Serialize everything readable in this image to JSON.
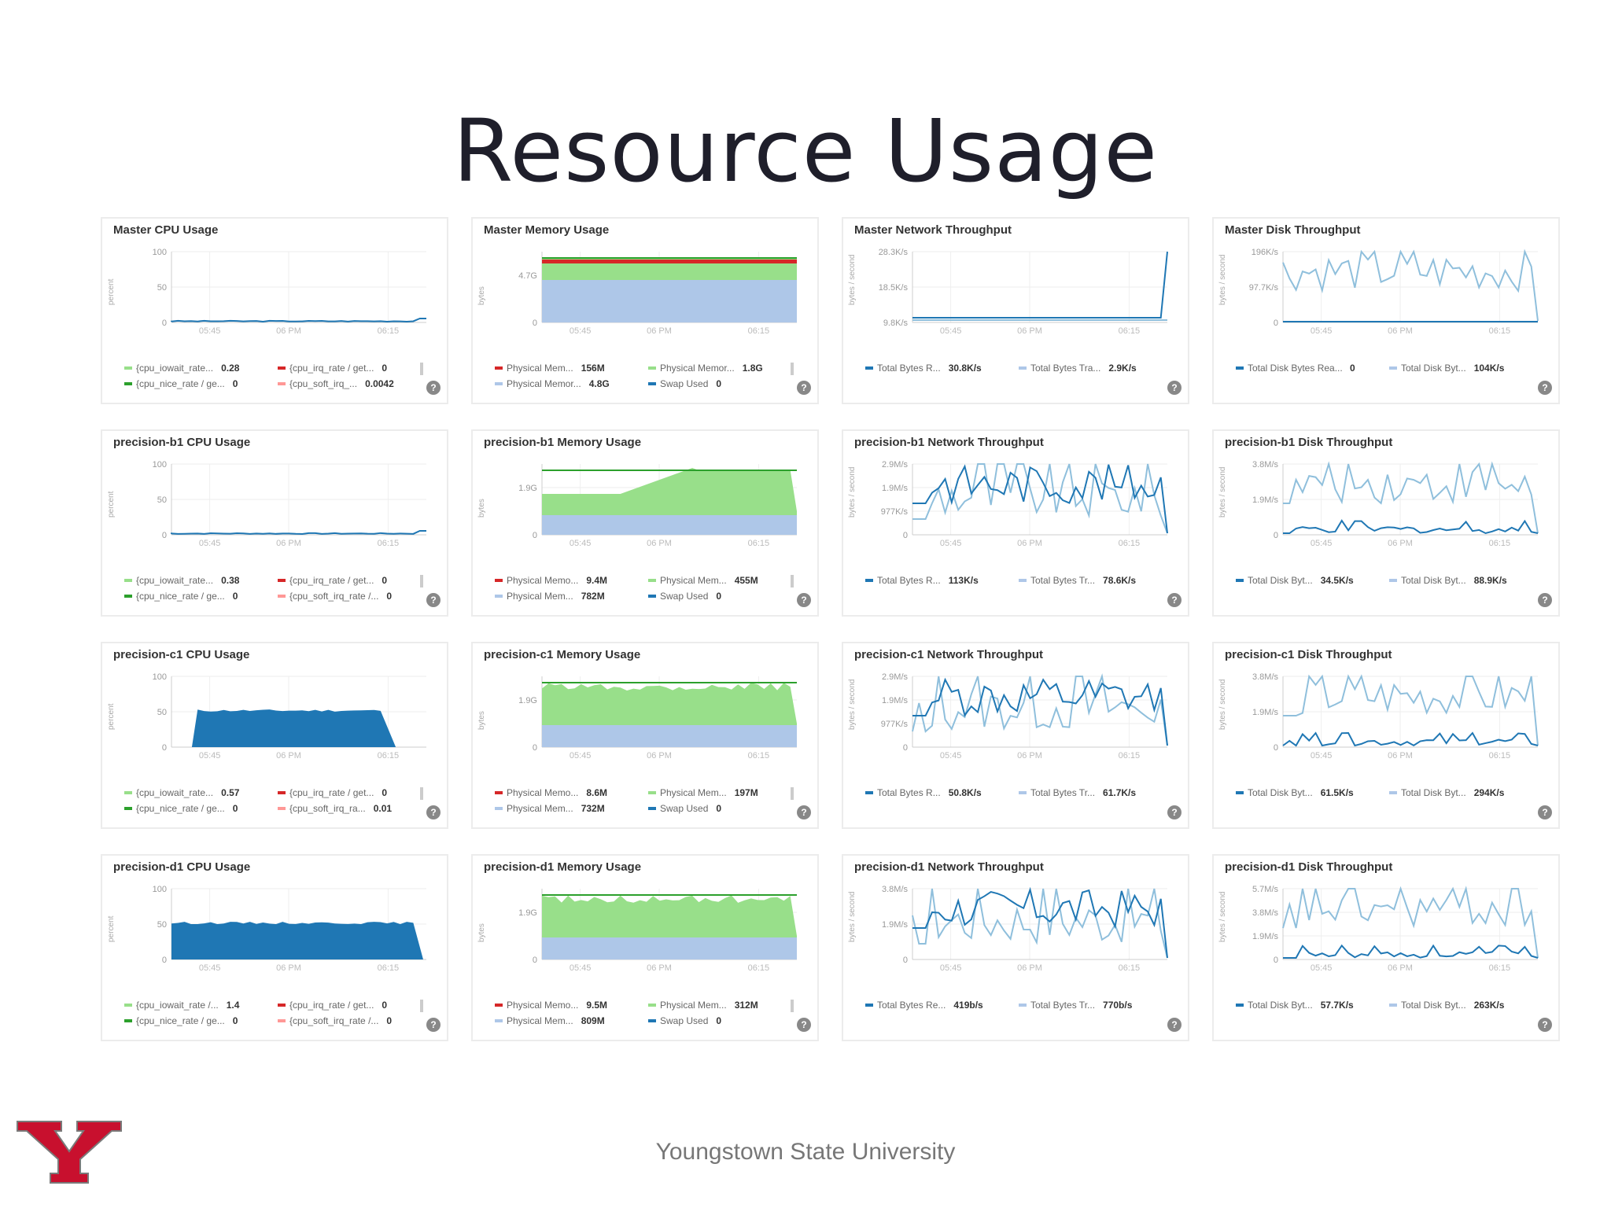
{
  "slide_title": "Resource Usage",
  "footer": "Youngstown State University",
  "logo_letter": "Y",
  "panels": [
    {
      "title": "Master CPU Usage",
      "kind": "cpu",
      "ylabel": "percent",
      "yticks": [
        "100",
        "50",
        "0"
      ],
      "xticks": [
        "05:45",
        "06 PM",
        "06:15"
      ],
      "legend": [
        {
          "name": "{cpu_iowait_rate...",
          "value": "0.28",
          "color": "#98df8a"
        },
        {
          "name": "{cpu_irq_rate / get...",
          "value": "0",
          "color": "#d62728"
        },
        {
          "name": "{cpu_nice_rate / ge...",
          "value": "0",
          "color": "#2ca02c"
        },
        {
          "name": "{cpu_soft_irq_...",
          "value": "0.0042",
          "color": "#ff9896"
        }
      ]
    },
    {
      "title": "Master Memory Usage",
      "kind": "mem",
      "ylabel": "bytes",
      "yticks": [
        "4.7G",
        "0"
      ],
      "xticks": [
        "05:45",
        "06 PM",
        "06:15"
      ],
      "legend": [
        {
          "name": "Physical Mem...",
          "value": "156M",
          "color": "#d62728"
        },
        {
          "name": "Physical Memor...",
          "value": "1.8G",
          "color": "#98df8a"
        },
        {
          "name": "Physical Memor...",
          "value": "4.8G",
          "color": "#aec7e8"
        },
        {
          "name": "Swap Used",
          "value": "0",
          "color": "#1f77b4"
        }
      ]
    },
    {
      "title": "Master Network Throughput",
      "kind": "net",
      "ylabel": "bytes / second",
      "yticks": [
        "28.3K/s",
        "18.5K/s",
        "9.8K/s"
      ],
      "xticks": [
        "05:45",
        "06 PM",
        "06:15"
      ],
      "legend": [
        {
          "name": "Total Bytes R...",
          "value": "30.8K/s",
          "color": "#1f77b4"
        },
        {
          "name": "Total Bytes Tra...",
          "value": "2.9K/s",
          "color": "#aec7e8"
        }
      ]
    },
    {
      "title": "Master Disk Throughput",
      "kind": "disk",
      "ylabel": "bytes / second",
      "yticks": [
        "196K/s",
        "97.7K/s",
        "0"
      ],
      "xticks": [
        "05:45",
        "06 PM",
        "06:15"
      ],
      "legend": [
        {
          "name": "Total Disk Bytes Rea...",
          "value": "0",
          "color": "#1f77b4"
        },
        {
          "name": "Total Disk Byt...",
          "value": "104K/s",
          "color": "#aec7e8"
        }
      ]
    },
    {
      "title": "precision-b1 CPU Usage",
      "kind": "cpu",
      "ylabel": "percent",
      "yticks": [
        "100",
        "50",
        "0"
      ],
      "xticks": [
        "05:45",
        "06 PM",
        "06:15"
      ],
      "legend": [
        {
          "name": "{cpu_iowait_rate...",
          "value": "0.38",
          "color": "#98df8a"
        },
        {
          "name": "{cpu_irq_rate / get...",
          "value": "0",
          "color": "#d62728"
        },
        {
          "name": "{cpu_nice_rate / ge...",
          "value": "0",
          "color": "#2ca02c"
        },
        {
          "name": "{cpu_soft_irq_rate /...",
          "value": "0",
          "color": "#ff9896"
        }
      ]
    },
    {
      "title": "precision-b1 Memory Usage",
      "kind": "mem",
      "ylabel": "bytes",
      "yticks": [
        "1.9G",
        "0"
      ],
      "xticks": [
        "05:45",
        "06 PM",
        "06:15"
      ],
      "legend": [
        {
          "name": "Physical Memo...",
          "value": "9.4M",
          "color": "#d62728"
        },
        {
          "name": "Physical Mem...",
          "value": "455M",
          "color": "#98df8a"
        },
        {
          "name": "Physical Mem...",
          "value": "782M",
          "color": "#aec7e8"
        },
        {
          "name": "Swap Used",
          "value": "0",
          "color": "#1f77b4"
        }
      ]
    },
    {
      "title": "precision-b1 Network Throughput",
      "kind": "net",
      "ylabel": "bytes / second",
      "yticks": [
        "2.9M/s",
        "1.9M/s",
        "977K/s",
        "0"
      ],
      "xticks": [
        "05:45",
        "06 PM",
        "06:15"
      ],
      "legend": [
        {
          "name": "Total Bytes R...",
          "value": "113K/s",
          "color": "#1f77b4"
        },
        {
          "name": "Total Bytes Tr...",
          "value": "78.6K/s",
          "color": "#aec7e8"
        }
      ]
    },
    {
      "title": "precision-b1 Disk Throughput",
      "kind": "disk",
      "ylabel": "bytes / second",
      "yticks": [
        "3.8M/s",
        "1.9M/s",
        "0"
      ],
      "xticks": [
        "05:45",
        "06 PM",
        "06:15"
      ],
      "legend": [
        {
          "name": "Total Disk Byt...",
          "value": "34.5K/s",
          "color": "#1f77b4"
        },
        {
          "name": "Total Disk Byt...",
          "value": "88.9K/s",
          "color": "#aec7e8"
        }
      ]
    },
    {
      "title": "precision-c1 CPU Usage",
      "kind": "cpu",
      "ylabel": "percent",
      "yticks": [
        "100",
        "50",
        "0"
      ],
      "xticks": [
        "05:45",
        "06 PM",
        "06:15"
      ],
      "legend": [
        {
          "name": "{cpu_iowait_rate...",
          "value": "0.57",
          "color": "#98df8a"
        },
        {
          "name": "{cpu_irq_rate / get...",
          "value": "0",
          "color": "#d62728"
        },
        {
          "name": "{cpu_nice_rate / ge...",
          "value": "0",
          "color": "#2ca02c"
        },
        {
          "name": "{cpu_soft_irq_ra...",
          "value": "0.01",
          "color": "#ff9896"
        }
      ]
    },
    {
      "title": "precision-c1 Memory Usage",
      "kind": "mem",
      "ylabel": "bytes",
      "yticks": [
        "1.9G",
        "0"
      ],
      "xticks": [
        "05:45",
        "06 PM",
        "06:15"
      ],
      "legend": [
        {
          "name": "Physical Memo...",
          "value": "8.6M",
          "color": "#d62728"
        },
        {
          "name": "Physical Mem...",
          "value": "197M",
          "color": "#98df8a"
        },
        {
          "name": "Physical Mem...",
          "value": "732M",
          "color": "#aec7e8"
        },
        {
          "name": "Swap Used",
          "value": "0",
          "color": "#1f77b4"
        }
      ]
    },
    {
      "title": "precision-c1 Network Throughput",
      "kind": "net",
      "ylabel": "bytes / second",
      "yticks": [
        "2.9M/s",
        "1.9M/s",
        "977K/s",
        "0"
      ],
      "xticks": [
        "05:45",
        "06 PM",
        "06:15"
      ],
      "legend": [
        {
          "name": "Total Bytes R...",
          "value": "50.8K/s",
          "color": "#1f77b4"
        },
        {
          "name": "Total Bytes Tr...",
          "value": "61.7K/s",
          "color": "#aec7e8"
        }
      ]
    },
    {
      "title": "precision-c1 Disk Throughput",
      "kind": "disk",
      "ylabel": "bytes / second",
      "yticks": [
        "3.8M/s",
        "1.9M/s",
        "0"
      ],
      "xticks": [
        "05:45",
        "06 PM",
        "06:15"
      ],
      "legend": [
        {
          "name": "Total Disk Byt...",
          "value": "61.5K/s",
          "color": "#1f77b4"
        },
        {
          "name": "Total Disk Byt...",
          "value": "294K/s",
          "color": "#aec7e8"
        }
      ]
    },
    {
      "title": "precision-d1 CPU Usage",
      "kind": "cpu",
      "ylabel": "percent",
      "yticks": [
        "100",
        "50",
        "0"
      ],
      "xticks": [
        "05:45",
        "06 PM",
        "06:15"
      ],
      "legend": [
        {
          "name": "{cpu_iowait_rate /...",
          "value": "1.4",
          "color": "#98df8a"
        },
        {
          "name": "{cpu_irq_rate / get...",
          "value": "0",
          "color": "#d62728"
        },
        {
          "name": "{cpu_nice_rate / ge...",
          "value": "0",
          "color": "#2ca02c"
        },
        {
          "name": "{cpu_soft_irq_rate /...",
          "value": "0",
          "color": "#ff9896"
        }
      ]
    },
    {
      "title": "precision-d1 Memory Usage",
      "kind": "mem",
      "ylabel": "bytes",
      "yticks": [
        "1.9G",
        "0"
      ],
      "xticks": [
        "05:45",
        "06 PM",
        "06:15"
      ],
      "legend": [
        {
          "name": "Physical Memo...",
          "value": "9.5M",
          "color": "#d62728"
        },
        {
          "name": "Physical Mem...",
          "value": "312M",
          "color": "#98df8a"
        },
        {
          "name": "Physical Mem...",
          "value": "809M",
          "color": "#aec7e8"
        },
        {
          "name": "Swap Used",
          "value": "0",
          "color": "#1f77b4"
        }
      ]
    },
    {
      "title": "precision-d1 Network Throughput",
      "kind": "net",
      "ylabel": "bytes / second",
      "yticks": [
        "3.8M/s",
        "1.9M/s",
        "0"
      ],
      "xticks": [
        "05:45",
        "06 PM",
        "06:15"
      ],
      "legend": [
        {
          "name": "Total Bytes Re...",
          "value": "419b/s",
          "color": "#1f77b4"
        },
        {
          "name": "Total Bytes Tr...",
          "value": "770b/s",
          "color": "#aec7e8"
        }
      ]
    },
    {
      "title": "precision-d1 Disk Throughput",
      "kind": "disk",
      "ylabel": "bytes / second",
      "yticks": [
        "5.7M/s",
        "3.8M/s",
        "1.9M/s",
        "0"
      ],
      "xticks": [
        "05:45",
        "06 PM",
        "06:15"
      ],
      "legend": [
        {
          "name": "Total Disk Byt...",
          "value": "57.7K/s",
          "color": "#1f77b4"
        },
        {
          "name": "Total Disk Byt...",
          "value": "263K/s",
          "color": "#aec7e8"
        }
      ]
    }
  ],
  "colors": {
    "cpu_fill": "#1f77b4",
    "mem_green": "#98df8a",
    "mem_blue": "#aec7e8",
    "mem_red": "#d62728",
    "line_dark": "#1f77b4",
    "line_light": "#8fbfdc",
    "logo_red": "#c8102e"
  }
}
